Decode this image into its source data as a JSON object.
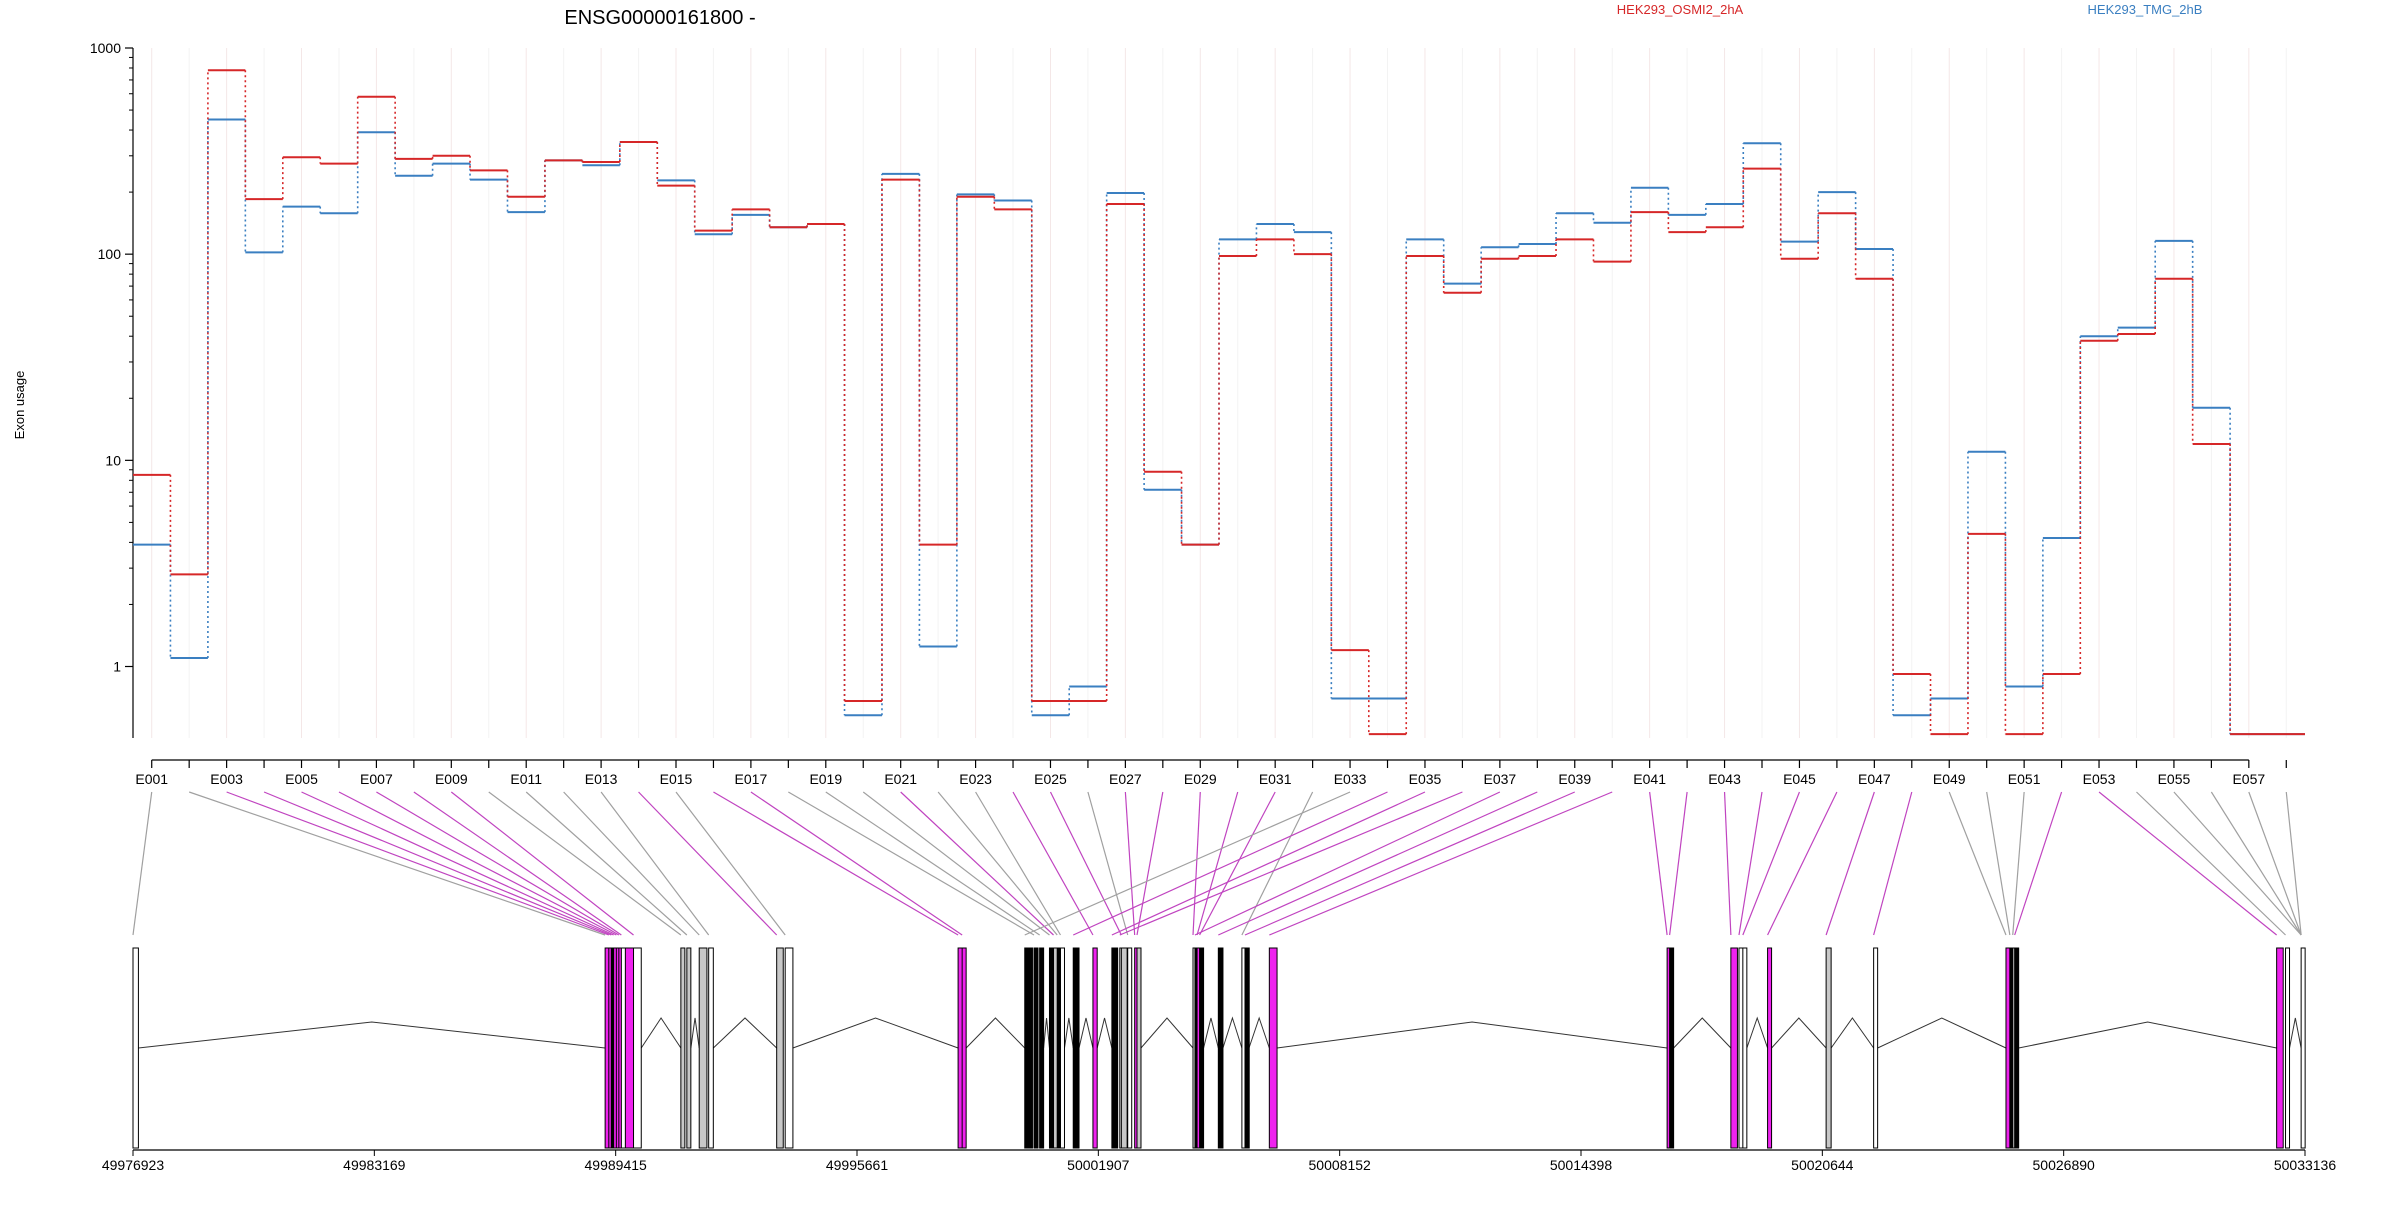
{
  "chart_data": {
    "type": "line",
    "title": "ENSG00000161800 -",
    "ylabel": "Exon usage",
    "yscale": "log",
    "ylim": [
      0.45,
      1000
    ],
    "y_ticks": [
      1,
      10,
      100,
      1000
    ],
    "y_tick_labels": [
      "1",
      "10",
      "100",
      "1000"
    ],
    "legend_position": "top",
    "series": [
      {
        "name": "HEK293_OSMI2_2hA",
        "color": "#d62728",
        "values": [
          8.5,
          2.8,
          780,
          185,
          295,
          275,
          580,
          290,
          300,
          255,
          190,
          285,
          280,
          350,
          215,
          130,
          165,
          135,
          140,
          0.68,
          230,
          3.9,
          190,
          165,
          0.68,
          0.68,
          175,
          8.8,
          3.9,
          98,
          118,
          100,
          1.2,
          0.47,
          98,
          65,
          95,
          98,
          118,
          92,
          160,
          128,
          135,
          260,
          95,
          158,
          76,
          0.92,
          0.47,
          4.4,
          0.47,
          0.92,
          38,
          41,
          76,
          12,
          0.47,
          0.47
        ]
      },
      {
        "name": "HEK293_TMG_2hB",
        "color": "#3a7fc1",
        "values": [
          3.9,
          1.1,
          450,
          102,
          170,
          158,
          390,
          240,
          275,
          230,
          160,
          285,
          270,
          350,
          228,
          125,
          155,
          135,
          140,
          0.58,
          245,
          1.25,
          195,
          182,
          0.58,
          0.8,
          198,
          7.2,
          3.9,
          118,
          140,
          128,
          0.7,
          0.7,
          118,
          72,
          108,
          112,
          158,
          142,
          210,
          155,
          175,
          345,
          115,
          200,
          106,
          0.58,
          0.7,
          11,
          0.8,
          4.2,
          40,
          44,
          116,
          18,
          0.47,
          0.47
        ]
      }
    ],
    "exon_labels": [
      "E001",
      "E003",
      "E005",
      "E007",
      "E009",
      "E011",
      "E013",
      "E015",
      "E017",
      "E019",
      "E021",
      "E023",
      "E025",
      "E027",
      "E029",
      "E031",
      "E033",
      "E035",
      "E037",
      "E039",
      "E041",
      "E043",
      "E045",
      "E047",
      "E049",
      "E051",
      "E053",
      "E055",
      "E057"
    ],
    "genomic_axis": {
      "min": 49976923,
      "max": 50033136,
      "tick_labels": [
        "49976923",
        "49983169",
        "49989415",
        "49995661",
        "50001907",
        "50008152",
        "50014398",
        "50020644",
        "50026890",
        "50033136"
      ]
    },
    "exon_coords": [
      49976923,
      49989142,
      49989237,
      49989302,
      49989362,
      49989432,
      49989497,
      49989562,
      49989877,
      49991102,
      49991257,
      49991577,
      49991822,
      49993582,
      49993802,
      49998277,
      49998382,
      50000242,
      50000387,
      50000642,
      50000747,
      50000842,
      50000927,
      50001767,
      50002502,
      50002667,
      50002847,
      50002907,
      50004357,
      50004462,
      50004527,
      50005622,
      50000002,
      50001257,
      50002257,
      50002462,
      50004407,
      50005012,
      50005702,
      50006332,
      50016627,
      50016692,
      50018277,
      50018487,
      50018587,
      50019227,
      50020742,
      50021972,
      50025397,
      50025497,
      50025572,
      50025622,
      50032402,
      50032632,
      50033036
    ],
    "exon_widths": [
      140,
      900,
      45,
      40,
      40,
      45,
      40,
      40,
      200,
      100,
      100,
      200,
      120,
      170,
      200,
      130,
      100,
      40,
      100,
      100,
      100,
      100,
      40,
      110,
      150,
      60,
      110,
      80,
      90,
      80,
      80,
      190,
      200,
      150,
      150,
      200,
      100,
      120,
      100,
      200,
      80,
      90,
      170,
      80,
      90,
      100,
      130,
      60,
      100,
      60,
      60,
      60,
      170,
      60,
      100
    ],
    "exon_colors": [
      "white",
      "magenta",
      "magenta",
      "black",
      "magenta",
      "magenta",
      "magenta",
      "white",
      "white",
      "grey",
      "grey",
      "grey",
      "white",
      "grey",
      "white",
      "magenta",
      "magenta",
      "black",
      "black",
      "black",
      "grey",
      "black",
      "white",
      "magenta",
      "grey",
      "white",
      "magenta",
      "grey",
      "white",
      "magenta",
      "black",
      "white",
      "black",
      "black",
      "black",
      "white",
      "black",
      "black",
      "black",
      "magenta",
      "magenta",
      "black",
      "magenta",
      "white",
      "white",
      "magenta",
      "grey",
      "white",
      "magenta",
      "black",
      "grey",
      "black",
      "magenta",
      "white",
      "white"
    ],
    "connector_colors": [
      "grey",
      "grey",
      "magenta",
      "magenta",
      "magenta",
      "magenta",
      "magenta",
      "magenta",
      "magenta",
      "grey",
      "grey",
      "grey",
      "grey",
      "magenta",
      "grey",
      "magenta",
      "magenta",
      "grey",
      "grey",
      "grey",
      "magenta",
      "grey",
      "grey",
      "magenta",
      "magenta",
      "grey",
      "magenta",
      "magenta",
      "magenta",
      "magenta",
      "magenta",
      "grey",
      "grey",
      "magenta",
      "magenta",
      "magenta",
      "magenta",
      "magenta",
      "magenta",
      "magenta",
      "magenta",
      "magenta",
      "magenta",
      "magenta",
      "magenta",
      "magenta",
      "magenta",
      "magenta",
      "grey",
      "grey",
      "grey",
      "magenta",
      "magenta",
      "grey",
      "grey",
      "grey",
      "grey",
      "grey"
    ],
    "grid": "vertical-light",
    "colors": {
      "magenta": "#ee22ee",
      "grey": "#c8c8c8",
      "connector_grey": "#a0a0a0",
      "connector_magenta": "#c044c0"
    }
  }
}
